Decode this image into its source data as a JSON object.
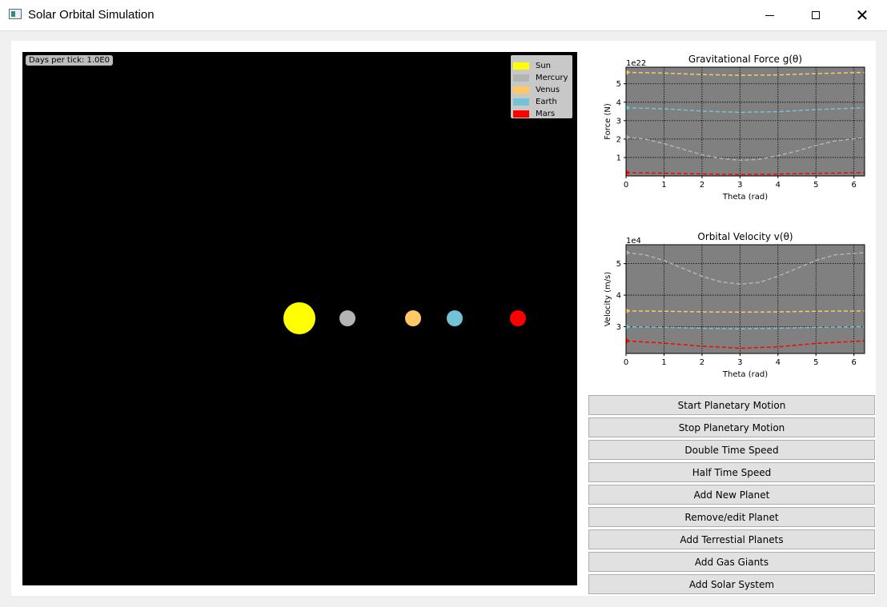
{
  "window": {
    "title": "Solar Orbital Simulation",
    "controls": [
      "minimize-icon",
      "maximize-icon",
      "close-icon"
    ]
  },
  "simulation": {
    "days_per_tick": "Days per tick: 1.0E0",
    "legend": [
      {
        "name": "Sun",
        "color": "#ffff00"
      },
      {
        "name": "Mercury",
        "color": "#b4b4b4"
      },
      {
        "name": "Venus",
        "color": "#ffc864"
      },
      {
        "name": "Earth",
        "color": "#73c3d7"
      },
      {
        "name": "Mars",
        "color": "#ff0000"
      }
    ],
    "background": "#000000"
  },
  "chart_data": [
    {
      "type": "line",
      "title": "Gravitational Force g(θ)",
      "xlabel": "Theta (rad)",
      "ylabel": "Force (N)",
      "offset_text": "1e22",
      "xlim": [
        0,
        6.28
      ],
      "ylim": [
        0,
        5.9
      ],
      "xticks": [
        "0",
        "1",
        "2",
        "3",
        "4",
        "5",
        "6"
      ],
      "yticks": [
        "1",
        "2",
        "3",
        "4",
        "5"
      ],
      "grid": true,
      "background": "#808080",
      "series": [
        {
          "color": "#ffc864",
          "x": [
            0,
            1,
            2,
            3,
            4,
            5,
            6.28
          ],
          "y": [
            5.62,
            5.58,
            5.5,
            5.46,
            5.48,
            5.55,
            5.62
          ]
        },
        {
          "color": "#73c3d7",
          "x": [
            0,
            1,
            2,
            3,
            4,
            5,
            6.28
          ],
          "y": [
            3.7,
            3.64,
            3.52,
            3.45,
            3.49,
            3.6,
            3.7
          ]
        },
        {
          "color": "#b4b4b4",
          "x": [
            0,
            0.5,
            1,
            1.5,
            2,
            2.5,
            3,
            3.5,
            4,
            4.5,
            5,
            5.5,
            6.28
          ],
          "y": [
            2.1,
            2.0,
            1.75,
            1.45,
            1.15,
            0.95,
            0.85,
            0.9,
            1.1,
            1.35,
            1.65,
            1.9,
            2.08
          ]
        },
        {
          "color": "#ff0000",
          "x": [
            0,
            1,
            2,
            3,
            4,
            5,
            6.28
          ],
          "y": [
            0.18,
            0.15,
            0.11,
            0.08,
            0.1,
            0.14,
            0.18
          ]
        }
      ]
    },
    {
      "type": "line",
      "title": "Orbital Velocity v(θ)",
      "xlabel": "Theta (rad)",
      "ylabel": "Velocity (m/s)",
      "offset_text": "1e4",
      "xlim": [
        0,
        6.28
      ],
      "ylim": [
        2.15,
        5.6
      ],
      "xticks": [
        "0",
        "1",
        "2",
        "3",
        "4",
        "5",
        "6"
      ],
      "yticks": [
        "3",
        "4",
        "5"
      ],
      "grid": true,
      "background": "#808080",
      "series": [
        {
          "color": "#b4b4b4",
          "x": [
            0,
            0.5,
            1,
            1.5,
            2,
            2.5,
            3,
            3.5,
            4,
            4.5,
            5,
            5.5,
            6.28
          ],
          "y": [
            5.35,
            5.28,
            5.1,
            4.85,
            4.6,
            4.42,
            4.35,
            4.4,
            4.6,
            4.85,
            5.1,
            5.28,
            5.35
          ]
        },
        {
          "color": "#ffc864",
          "x": [
            0,
            1,
            2,
            3,
            4,
            5,
            6.28
          ],
          "y": [
            3.5,
            3.49,
            3.47,
            3.46,
            3.47,
            3.49,
            3.5
          ]
        },
        {
          "color": "#73c3d7",
          "x": [
            0,
            1,
            2,
            3,
            4,
            5,
            6.28
          ],
          "y": [
            3.0,
            2.98,
            2.95,
            2.93,
            2.95,
            2.98,
            3.0
          ]
        },
        {
          "color": "#ff0000",
          "x": [
            0,
            1,
            2,
            3,
            4,
            5,
            6.28
          ],
          "y": [
            2.55,
            2.48,
            2.38,
            2.32,
            2.36,
            2.47,
            2.55
          ]
        }
      ]
    }
  ],
  "buttons": [
    "Start Planetary Motion",
    "Stop Planetary Motion",
    "Double Time Speed",
    "Half Time Speed",
    "Add New Planet",
    "Remove/edit Planet",
    "Add Terrestial Planets",
    "Add Gas Giants",
    "Add Solar System"
  ]
}
